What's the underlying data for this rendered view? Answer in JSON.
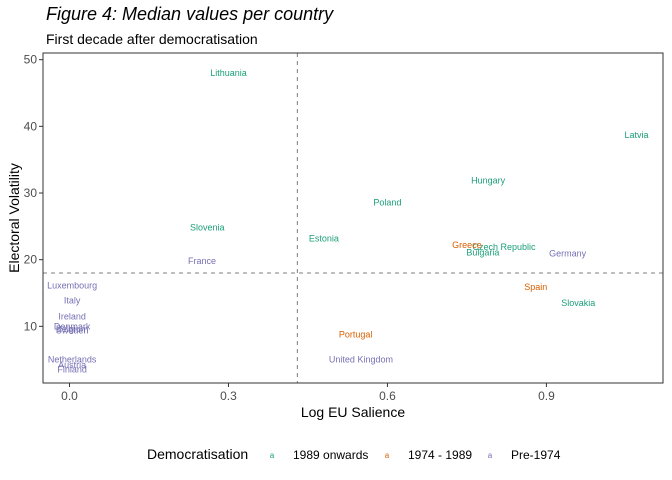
{
  "title": "Figure 4: Median values per country",
  "subtitle": "First decade after democratisation",
  "chart_data": {
    "type": "scatter",
    "xlabel": "Log EU Salience",
    "ylabel": "Electoral Volatility",
    "xlim": [
      -0.05,
      1.12
    ],
    "ylim": [
      1.5,
      51
    ],
    "x_ticks": [
      0.0,
      0.3,
      0.6,
      0.9
    ],
    "x_tick_labels": [
      "0.0",
      "0.3",
      "0.6",
      "0.9"
    ],
    "y_ticks": [
      10,
      20,
      30,
      40,
      50
    ],
    "y_tick_labels": [
      "10",
      "20",
      "30",
      "40",
      "50"
    ],
    "grid": false,
    "reference_lines": {
      "x": 0.43,
      "y": 18
    },
    "legend": {
      "title": "Democratisation",
      "position": "bottom",
      "key_glyph": "a",
      "entries": [
        {
          "label": "1989 onwards",
          "color": "#1b9e77"
        },
        {
          "label": "1974 - 1989",
          "color": "#d95f02"
        },
        {
          "label": "Pre-1974",
          "color": "#7570b3"
        }
      ]
    },
    "series": [
      {
        "name": "1989 onwards",
        "color": "#1b9e77",
        "points": [
          {
            "label": "Lithuania",
            "x": 0.3,
            "y": 48.0
          },
          {
            "label": "Latvia",
            "x": 1.07,
            "y": 38.7
          },
          {
            "label": "Hungary",
            "x": 0.79,
            "y": 31.9
          },
          {
            "label": "Poland",
            "x": 0.6,
            "y": 28.6
          },
          {
            "label": "Slovenia",
            "x": 0.26,
            "y": 24.8
          },
          {
            "label": "Estonia",
            "x": 0.48,
            "y": 23.2
          },
          {
            "label": "Czech Republic",
            "x": 0.82,
            "y": 21.9
          },
          {
            "label": "Bulgaria",
            "x": 0.78,
            "y": 21.1
          },
          {
            "label": "Slovakia",
            "x": 0.96,
            "y": 13.5
          }
        ]
      },
      {
        "name": "1974 - 1989",
        "color": "#d95f02",
        "points": [
          {
            "label": "Greece",
            "x": 0.75,
            "y": 22.2
          },
          {
            "label": "Spain",
            "x": 0.88,
            "y": 15.9
          },
          {
            "label": "Portugal",
            "x": 0.54,
            "y": 8.8
          }
        ]
      },
      {
        "name": "Pre-1974",
        "color": "#7570b3",
        "points": [
          {
            "label": "Germany",
            "x": 0.94,
            "y": 20.9
          },
          {
            "label": "France",
            "x": 0.25,
            "y": 19.8
          },
          {
            "label": "Luxembourg",
            "x": 0.005,
            "y": 16.1
          },
          {
            "label": "Italy",
            "x": 0.005,
            "y": 13.9
          },
          {
            "label": "Ireland",
            "x": 0.005,
            "y": 11.5
          },
          {
            "label": "Denmark",
            "x": 0.005,
            "y": 10.0
          },
          {
            "label": "Belgium",
            "x": 0.005,
            "y": 9.6
          },
          {
            "label": "Sweden",
            "x": 0.005,
            "y": 9.4
          },
          {
            "label": "United Kingdom",
            "x": 0.55,
            "y": 5.0
          },
          {
            "label": "Netherlands",
            "x": 0.005,
            "y": 5.0
          },
          {
            "label": "Austria",
            "x": 0.005,
            "y": 4.2
          },
          {
            "label": "Finland",
            "x": 0.005,
            "y": 3.5
          }
        ]
      }
    ]
  }
}
